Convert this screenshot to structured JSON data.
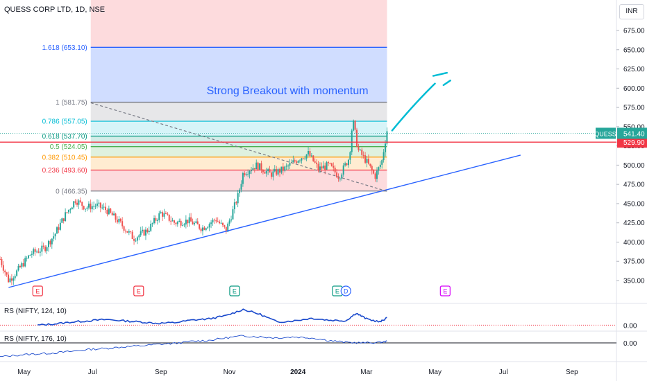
{
  "header": {
    "symbol_title": "QUESS CORP LTD, 1D, NSE",
    "currency": "INR"
  },
  "colors": {
    "candle_up": "#26a69a",
    "candle_down": "#ef5350",
    "trendline": "#2962ff",
    "resistance": "#f23645",
    "annotation": "#2962ff",
    "arrow": "#00bcd4",
    "rs_line": "#1848cc"
  },
  "chart_data": [
    {
      "type": "candlestick",
      "title": "QUESS CORP LTD, 1D, NSE",
      "ylim": [
        325,
        700
      ],
      "y_ticks": [
        "675.00",
        "650.00",
        "625.00",
        "600.00",
        "575.00",
        "550.00",
        "525.00",
        "500.00",
        "475.00",
        "450.00",
        "425.00",
        "400.00",
        "375.00",
        "350.00"
      ],
      "y_tick_values": [
        675,
        650,
        625,
        600,
        575,
        550,
        525,
        500,
        475,
        450,
        425,
        400,
        375,
        350
      ],
      "x_months": [
        {
          "label": "May",
          "month": 4.6
        },
        {
          "label": "Jul",
          "month": 6.6
        },
        {
          "label": "Sep",
          "month": 8.6
        },
        {
          "label": "Nov",
          "month": 10.6
        },
        {
          "label": "2024",
          "month": 12.6
        },
        {
          "label": "Mar",
          "month": 14.6
        },
        {
          "label": "May",
          "month": 16.6
        },
        {
          "label": "Jul",
          "month": 18.6
        },
        {
          "label": "Sep",
          "month": 20.6
        }
      ],
      "x_range_months": [
        3.9,
        21.9
      ],
      "price_path": [
        [
          3.9,
          378
        ],
        [
          4.15,
          350
        ],
        [
          4.4,
          362
        ],
        [
          4.8,
          385
        ],
        [
          5.2,
          392
        ],
        [
          5.5,
          410
        ],
        [
          5.8,
          435
        ],
        [
          6.1,
          455
        ],
        [
          6.4,
          445
        ],
        [
          6.7,
          448
        ],
        [
          7.0,
          442
        ],
        [
          7.4,
          425
        ],
        [
          7.8,
          405
        ],
        [
          8.2,
          415
        ],
        [
          8.6,
          438
        ],
        [
          9.0,
          425
        ],
        [
          9.4,
          428
        ],
        [
          9.8,
          418
        ],
        [
          10.2,
          430
        ],
        [
          10.5,
          415
        ],
        [
          10.85,
          460
        ],
        [
          11.0,
          490
        ],
        [
          11.4,
          500
        ],
        [
          11.8,
          488
        ],
        [
          12.2,
          495
        ],
        [
          12.6,
          508
        ],
        [
          12.9,
          515
        ],
        [
          13.2,
          495
        ],
        [
          13.5,
          500
        ],
        [
          13.8,
          485
        ],
        [
          14.1,
          510
        ],
        [
          14.2,
          560
        ],
        [
          14.35,
          520
        ],
        [
          14.6,
          505
        ],
        [
          14.85,
          485
        ],
        [
          15.05,
          505
        ],
        [
          15.2,
          545
        ]
      ],
      "last_price": "541.40",
      "last_label": "QUESS",
      "resistance_level": "529.90",
      "resistance_value": 529.9,
      "fibonacci": [
        {
          "label": "1.618 (653.10)",
          "value": 653.1,
          "color": "#2962ff"
        },
        {
          "label": "1 (581.75)",
          "value": 581.75,
          "color": "#787b86"
        },
        {
          "label": "0.786 (557.05)",
          "value": 557.05,
          "color": "#00bcd4"
        },
        {
          "label": "0.618 (537.70)",
          "value": 537.7,
          "color": "#089981"
        },
        {
          "label": "0.5 (524.05)",
          "value": 524.05,
          "color": "#4caf50"
        },
        {
          "label": "0.382 (510.45)",
          "value": 510.45,
          "color": "#ff9800"
        },
        {
          "label": "0.236 (493.60)",
          "value": 493.6,
          "color": "#f23645"
        },
        {
          "label": "0 (466.35)",
          "value": 466.35,
          "color": "#787b86"
        }
      ],
      "fib_time_range_months": [
        6.55,
        15.2
      ],
      "trendline": [
        [
          4.15,
          341
        ],
        [
          19.1,
          513
        ]
      ],
      "dashed_line": [
        [
          6.55,
          581
        ],
        [
          15.2,
          466
        ]
      ],
      "annotation": "Strong Breakout with momentum",
      "arrow_target": [
        [
          15.35,
          545
        ],
        [
          16.6,
          606
        ],
        [
          16.95,
          620
        ]
      ],
      "earnings_markers": [
        {
          "label": "E",
          "month": 5.0,
          "type": "down"
        },
        {
          "label": "E",
          "month": 7.95,
          "type": "down"
        },
        {
          "label": "E",
          "month": 10.75,
          "type": "up"
        },
        {
          "label": "E",
          "month": 13.75,
          "type": "up"
        },
        {
          "label": "D",
          "month": 14.0,
          "type": "dividend"
        },
        {
          "label": "E",
          "month": 16.9,
          "type": "future"
        }
      ]
    },
    {
      "type": "line",
      "title": "RS (NIFTY, 124, 10)",
      "zero_label": "0.00",
      "x": [
        5.0,
        5.5,
        6.0,
        6.5,
        7.0,
        7.5,
        8.0,
        8.5,
        9.0,
        9.5,
        10.0,
        10.5,
        11.0,
        11.5,
        12.0,
        12.5,
        13.0,
        13.5,
        14.0,
        14.3,
        14.6,
        15.0,
        15.2
      ],
      "values": [
        0.0,
        0.02,
        0.05,
        0.07,
        0.09,
        0.07,
        0.05,
        0.03,
        0.04,
        0.08,
        0.1,
        0.15,
        0.25,
        0.17,
        0.05,
        0.07,
        0.11,
        0.08,
        0.07,
        0.19,
        0.1,
        0.05,
        0.12
      ],
      "ylim": [
        -0.05,
        0.3
      ]
    },
    {
      "type": "line",
      "title": "RS (NIFTY, 176, 10)",
      "zero_label": "0.00",
      "x": [
        3.9,
        4.5,
        5.0,
        5.5,
        6.0,
        6.5,
        7.0,
        7.5,
        8.0,
        8.5,
        9.0,
        9.5,
        10.0,
        10.5,
        11.0,
        11.5,
        12.0,
        12.5,
        13.0,
        13.5,
        14.0,
        14.5,
        15.0,
        15.2
      ],
      "values": [
        -0.28,
        -0.24,
        -0.22,
        -0.2,
        -0.17,
        -0.13,
        -0.11,
        -0.08,
        -0.06,
        -0.03,
        -0.01,
        0.03,
        0.05,
        0.1,
        0.14,
        0.12,
        0.1,
        0.12,
        0.1,
        0.05,
        0.01,
        0.0,
        0.01,
        0.03
      ],
      "ylim": [
        -0.32,
        0.18
      ]
    }
  ]
}
